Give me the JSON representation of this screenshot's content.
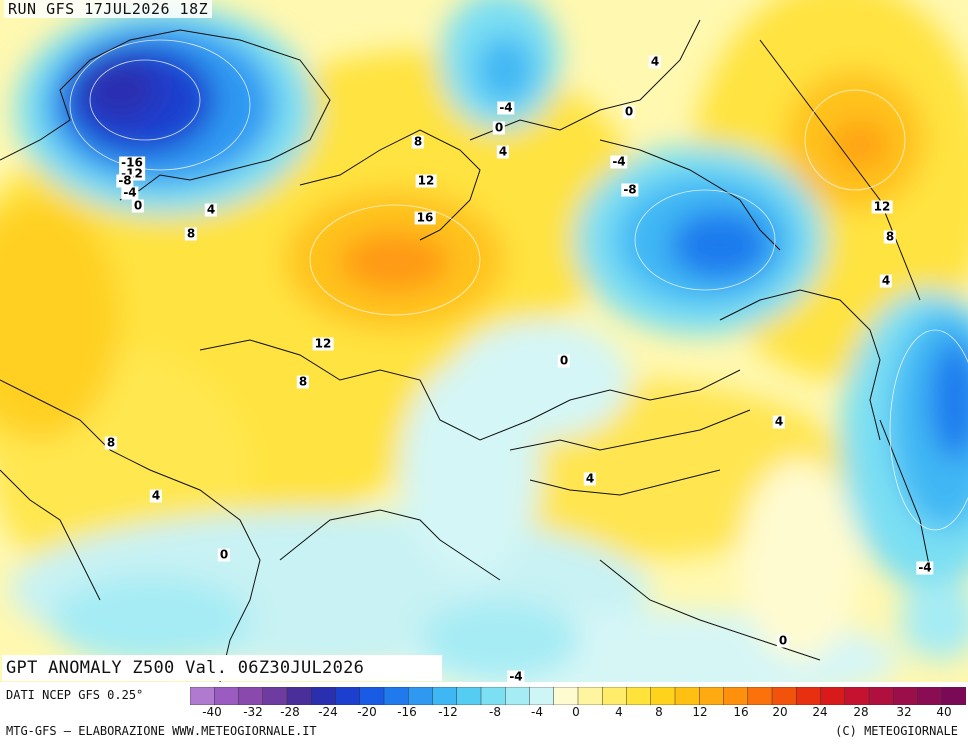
{
  "run_label": "RUN GFS 17JUL2026 18Z",
  "title": "GPT ANOMALY Z500 Val. 06Z30JUL2026",
  "source": "DATI NCEP GFS 0.25°",
  "credit_left": "MTG-GFS — ELABORAZIONE WWW.METEOGIORNALE.IT",
  "credit_right": "(C) METEOGIORNALE",
  "colorbar": {
    "labels": [
      "-40",
      "-32",
      "-28",
      "-24",
      "-20",
      "-16",
      "-12",
      "-8",
      "-4",
      "0",
      "4",
      "8",
      "12",
      "16",
      "20",
      "24",
      "28",
      "32",
      "40"
    ],
    "colors": [
      "#b07ad0",
      "#9a5cc0",
      "#8a4aad",
      "#6e3ba0",
      "#4a2f9a",
      "#2a2fb0",
      "#1c3fcf",
      "#1a5be6",
      "#1f7aee",
      "#2f99f2",
      "#3fb7f4",
      "#55cdf3",
      "#7cdff3",
      "#a6ecf4",
      "#cff6f6",
      "#fffbd0",
      "#fff4a0",
      "#ffec6a",
      "#ffe23a",
      "#ffd21c",
      "#ffc012",
      "#ffaa10",
      "#ff900e",
      "#fb720c",
      "#f3520a",
      "#e83010",
      "#d91a1a",
      "#c41230",
      "#b0103e",
      "#9c0e4a",
      "#8a0c52",
      "#7a0a55"
    ]
  },
  "contour_labels": [
    {
      "text": "-16"
    },
    {
      "text": "-12"
    },
    {
      "text": "-8"
    },
    {
      "text": "-4"
    },
    {
      "text": "0"
    },
    {
      "text": "4"
    },
    {
      "text": "8"
    },
    {
      "text": "8"
    },
    {
      "text": "12"
    },
    {
      "text": "16"
    },
    {
      "text": "-4"
    },
    {
      "text": "0"
    },
    {
      "text": "4"
    },
    {
      "text": "4"
    },
    {
      "text": "0"
    },
    {
      "text": "-4"
    },
    {
      "text": "-8"
    },
    {
      "text": "12"
    },
    {
      "text": "8"
    },
    {
      "text": "4"
    },
    {
      "text": "12"
    },
    {
      "text": "8"
    },
    {
      "text": "0"
    },
    {
      "text": "8"
    },
    {
      "text": "4"
    },
    {
      "text": "4"
    },
    {
      "text": "4"
    },
    {
      "text": "0"
    },
    {
      "text": "-4"
    },
    {
      "text": "0"
    },
    {
      "text": "-4"
    }
  ]
}
